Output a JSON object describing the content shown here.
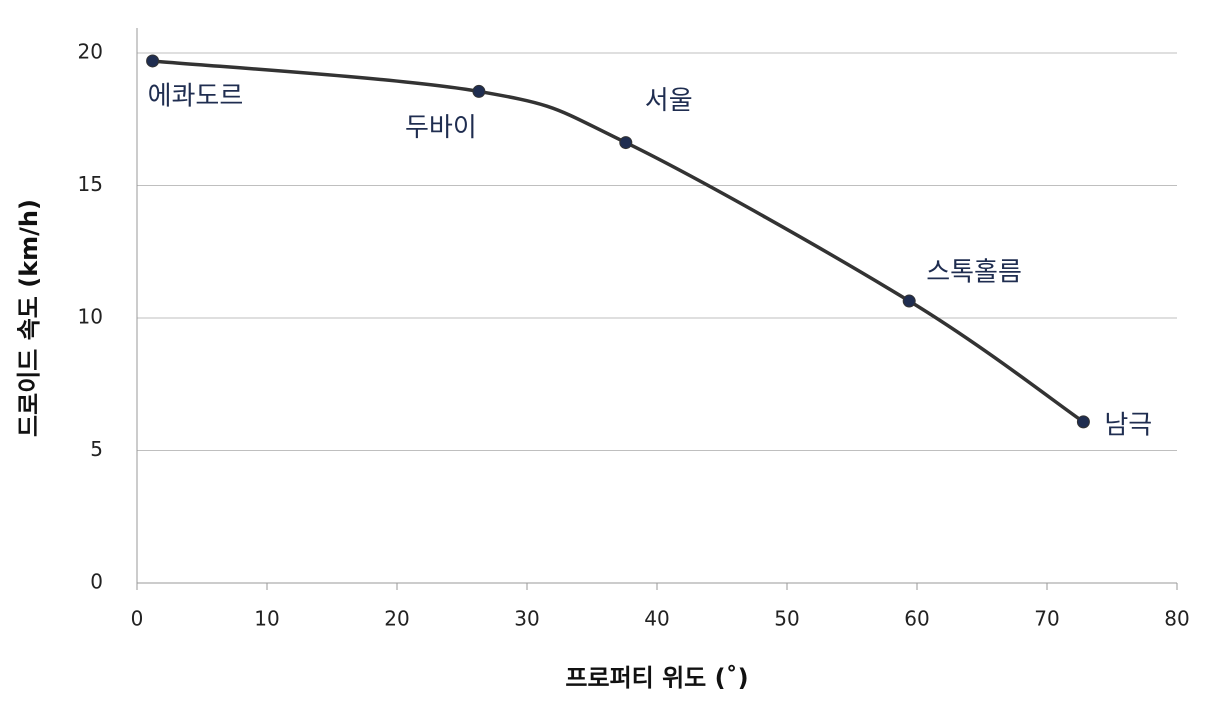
{
  "chart_data": {
    "type": "line",
    "x_label": "프로퍼티 위도 (˚)",
    "y_label": "드로이드 속도 (km/h)",
    "x": [
      1.2,
      26.3,
      37.6,
      59.4,
      72.8
    ],
    "series": [
      {
        "color": "#333333",
        "marker_color": "#1f2d50",
        "values": [
          19.7,
          18.55,
          16.62,
          10.64,
          6.08
        ]
      }
    ],
    "point_labels": [
      "에콰도르",
      "두바이",
      "서울",
      "스톡홀름",
      "남극"
    ],
    "xlim": [
      0,
      80
    ],
    "xticks": [
      0,
      10,
      20,
      30,
      40,
      50,
      60,
      70,
      80
    ],
    "ylim": [
      0,
      20
    ],
    "yticks": [
      0,
      5,
      10,
      15,
      20
    ],
    "grid": true
  }
}
